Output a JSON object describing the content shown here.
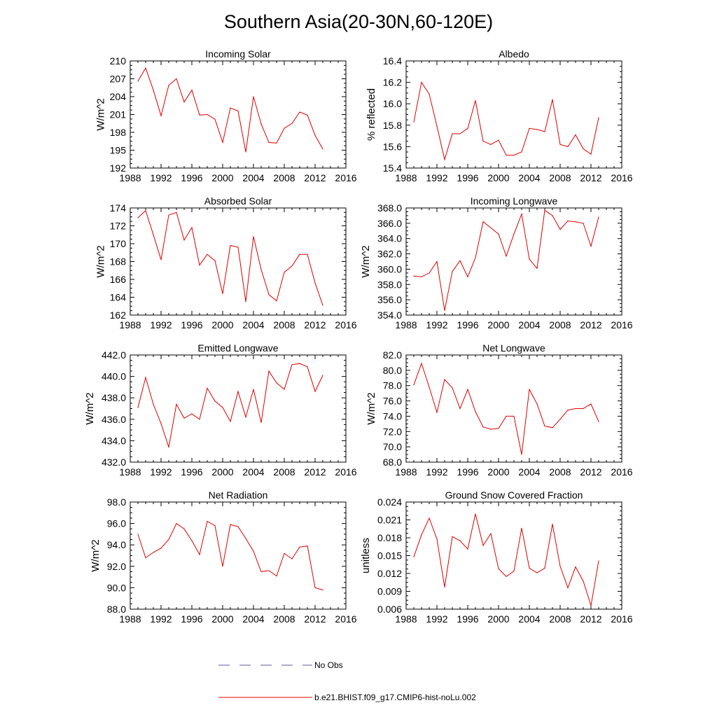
{
  "figure_title": "Southern Asia(20-30N,60-120E)",
  "legend": {
    "obs_label": "No Obs",
    "obs_color": "#5a5aa0",
    "model_label": "b.e21.BHIST.f09_g17.CMIP6-hist-noLu.002",
    "model_color": "#e00000"
  },
  "chart_data": [
    {
      "type": "line",
      "title": "Incoming Solar",
      "ylabel": "W/m^2",
      "xlim": [
        1988,
        2016
      ],
      "xticks": [
        "1988",
        "1992",
        "1996",
        "2000",
        "2004",
        "2008",
        "2012",
        "2016"
      ],
      "ylim": [
        192,
        210
      ],
      "yticks": [
        "192",
        "195",
        "198",
        "201",
        "204",
        "207",
        "210"
      ],
      "x": [
        1989,
        1990,
        1991,
        1992,
        1993,
        1994,
        1995,
        1996,
        1997,
        1998,
        1999,
        2000,
        2001,
        2002,
        2003,
        2004,
        2005,
        2006,
        2007,
        2008,
        2009,
        2010,
        2011,
        2012,
        2013
      ],
      "series": [
        {
          "values": [
            206.6,
            208.8,
            205.1,
            200.8,
            205.9,
            207.0,
            203.1,
            205.1,
            200.9,
            201.0,
            200.2,
            196.3,
            202.1,
            201.6,
            194.7,
            204.0,
            199.4,
            196.3,
            196.2,
            198.7,
            199.5,
            201.4,
            200.9,
            197.5,
            195.2
          ]
        }
      ]
    },
    {
      "type": "line",
      "title": "Albedo",
      "ylabel": "% reflected",
      "xlim": [
        1988,
        2016
      ],
      "xticks": [
        "1988",
        "1992",
        "1996",
        "2000",
        "2004",
        "2008",
        "2012",
        "2016"
      ],
      "ylim": [
        15.4,
        16.4
      ],
      "yticks": [
        "15.4",
        "15.6",
        "15.8",
        "16.0",
        "16.2",
        "16.4"
      ],
      "x": [
        1989,
        1990,
        1991,
        1992,
        1993,
        1994,
        1995,
        1996,
        1997,
        1998,
        1999,
        2000,
        2001,
        2002,
        2003,
        2004,
        2005,
        2006,
        2007,
        2008,
        2009,
        2010,
        2011,
        2012,
        2013
      ],
      "series": [
        {
          "values": [
            15.83,
            16.2,
            16.09,
            15.79,
            15.48,
            15.72,
            15.72,
            15.77,
            16.03,
            15.65,
            15.62,
            15.66,
            15.52,
            15.52,
            15.55,
            15.77,
            15.76,
            15.74,
            16.04,
            15.62,
            15.6,
            15.71,
            15.58,
            15.53,
            15.87
          ]
        }
      ]
    },
    {
      "type": "line",
      "title": "Absorbed Solar",
      "ylabel": "W/m^2",
      "xlim": [
        1988,
        2016
      ],
      "xticks": [
        "1988",
        "1992",
        "1996",
        "2000",
        "2004",
        "2008",
        "2012",
        "2016"
      ],
      "ylim": [
        162,
        174
      ],
      "yticks": [
        "162",
        "164",
        "166",
        "168",
        "170",
        "172",
        "174"
      ],
      "x": [
        1989,
        1990,
        1991,
        1992,
        1993,
        1994,
        1995,
        1996,
        1997,
        1998,
        1999,
        2000,
        2001,
        2002,
        2003,
        2004,
        2005,
        2006,
        2007,
        2008,
        2009,
        2010,
        2011,
        2012,
        2013
      ],
      "series": [
        {
          "values": [
            172.9,
            173.7,
            171.0,
            168.2,
            173.2,
            173.5,
            170.4,
            171.8,
            167.6,
            168.8,
            168.1,
            164.4,
            169.8,
            169.6,
            163.5,
            170.8,
            167.1,
            164.3,
            163.6,
            166.8,
            167.5,
            168.8,
            168.8,
            165.6,
            163.1
          ]
        }
      ]
    },
    {
      "type": "line",
      "title": "Incoming Longwave",
      "ylabel": "W/m^2",
      "xlim": [
        1988,
        2016
      ],
      "xticks": [
        "1988",
        "1992",
        "1996",
        "2000",
        "2004",
        "2008",
        "2012",
        "2016"
      ],
      "ylim": [
        354.0,
        368.0
      ],
      "yticks": [
        "354.0",
        "356.0",
        "358.0",
        "360.0",
        "362.0",
        "364.0",
        "366.0",
        "368.0"
      ],
      "x": [
        1989,
        1990,
        1991,
        1992,
        1993,
        1994,
        1995,
        1996,
        1997,
        1998,
        1999,
        2000,
        2001,
        2002,
        2003,
        2004,
        2005,
        2006,
        2007,
        2008,
        2009,
        2010,
        2011,
        2012,
        2013
      ],
      "series": [
        {
          "values": [
            359.1,
            359.0,
            359.5,
            361.0,
            354.6,
            359.7,
            361.1,
            359.0,
            361.5,
            366.2,
            365.4,
            364.6,
            361.7,
            364.6,
            367.2,
            361.3,
            360.1,
            367.7,
            367.0,
            365.2,
            366.3,
            366.2,
            366.0,
            363.0,
            366.8
          ]
        }
      ]
    },
    {
      "type": "line",
      "title": "Emitted Longwave",
      "ylabel": "W/m^2",
      "xlim": [
        1988,
        2016
      ],
      "xticks": [
        "1988",
        "1992",
        "1996",
        "2000",
        "2004",
        "2008",
        "2012",
        "2016"
      ],
      "ylim": [
        432.0,
        442.0
      ],
      "yticks": [
        "432.0",
        "434.0",
        "436.0",
        "438.0",
        "440.0",
        "442.0"
      ],
      "x": [
        1989,
        1990,
        1991,
        1992,
        1993,
        1994,
        1995,
        1996,
        1997,
        1998,
        1999,
        2000,
        2001,
        2002,
        2003,
        2004,
        2005,
        2006,
        2007,
        2008,
        2009,
        2010,
        2011,
        2012,
        2013
      ],
      "series": [
        {
          "values": [
            437.1,
            439.9,
            437.4,
            435.6,
            433.4,
            437.4,
            436.1,
            436.5,
            436.0,
            438.9,
            437.7,
            437.1,
            435.8,
            438.6,
            436.2,
            438.8,
            435.7,
            440.5,
            439.4,
            438.8,
            441.1,
            441.2,
            440.9,
            438.6,
            440.1
          ]
        }
      ]
    },
    {
      "type": "line",
      "title": "Net Longwave",
      "ylabel": "W/m^2",
      "xlim": [
        1988,
        2016
      ],
      "xticks": [
        "1988",
        "1992",
        "1996",
        "2000",
        "2004",
        "2008",
        "2012",
        "2016"
      ],
      "ylim": [
        68.0,
        82.0
      ],
      "yticks": [
        "68.0",
        "70.0",
        "72.0",
        "74.0",
        "76.0",
        "78.0",
        "80.0",
        "82.0"
      ],
      "x": [
        1989,
        1990,
        1991,
        1992,
        1993,
        1994,
        1995,
        1996,
        1997,
        1998,
        1999,
        2000,
        2001,
        2002,
        2003,
        2004,
        2005,
        2006,
        2007,
        2008,
        2009,
        2010,
        2011,
        2012,
        2013
      ],
      "series": [
        {
          "values": [
            78.1,
            80.9,
            77.8,
            74.5,
            78.8,
            77.7,
            75.0,
            77.5,
            74.6,
            72.6,
            72.3,
            72.4,
            74.0,
            74.0,
            69.0,
            77.5,
            75.6,
            72.7,
            72.5,
            73.6,
            74.8,
            75.0,
            75.0,
            75.6,
            73.3
          ]
        }
      ]
    },
    {
      "type": "line",
      "title": "Net Radiation",
      "ylabel": "W/m^2",
      "xlim": [
        1988,
        2016
      ],
      "xticks": [
        "1988",
        "1992",
        "1996",
        "2000",
        "2004",
        "2008",
        "2012",
        "2016"
      ],
      "ylim": [
        88.0,
        98.0
      ],
      "yticks": [
        "88.0",
        "90.0",
        "92.0",
        "94.0",
        "96.0",
        "98.0"
      ],
      "x": [
        1989,
        1990,
        1991,
        1992,
        1993,
        1994,
        1995,
        1996,
        1997,
        1998,
        1999,
        2000,
        2001,
        2002,
        2003,
        2004,
        2005,
        2006,
        2007,
        2008,
        2009,
        2010,
        2011,
        2012,
        2013
      ],
      "series": [
        {
          "values": [
            95.0,
            92.8,
            93.3,
            93.7,
            94.5,
            96.0,
            95.5,
            94.4,
            93.1,
            96.2,
            95.8,
            92.0,
            95.9,
            95.7,
            94.6,
            93.4,
            91.5,
            91.6,
            91.1,
            93.2,
            92.7,
            93.8,
            93.9,
            90.0,
            89.8
          ]
        }
      ]
    },
    {
      "type": "line",
      "title": "Ground Snow Covered Fraction",
      "ylabel": "unitless",
      "xlim": [
        1988,
        2016
      ],
      "xticks": [
        "1988",
        "1992",
        "1996",
        "2000",
        "2004",
        "2008",
        "2012",
        "2016"
      ],
      "ylim": [
        0.006,
        0.024
      ],
      "yticks": [
        "0.006",
        "0.009",
        "0.012",
        "0.015",
        "0.018",
        "0.021",
        "0.024"
      ],
      "x": [
        1989,
        1990,
        1991,
        1992,
        1993,
        1994,
        1995,
        1996,
        1997,
        1998,
        1999,
        2000,
        2001,
        2002,
        2003,
        2004,
        2005,
        2006,
        2007,
        2008,
        2009,
        2010,
        2011,
        2012,
        2013
      ],
      "series": [
        {
          "values": [
            0.0148,
            0.0185,
            0.0213,
            0.0178,
            0.0097,
            0.0182,
            0.0175,
            0.0161,
            0.022,
            0.0167,
            0.0187,
            0.0128,
            0.0115,
            0.0124,
            0.0196,
            0.0129,
            0.0121,
            0.0129,
            0.0203,
            0.0132,
            0.0096,
            0.0131,
            0.0107,
            0.0066,
            0.0141
          ]
        }
      ]
    }
  ]
}
